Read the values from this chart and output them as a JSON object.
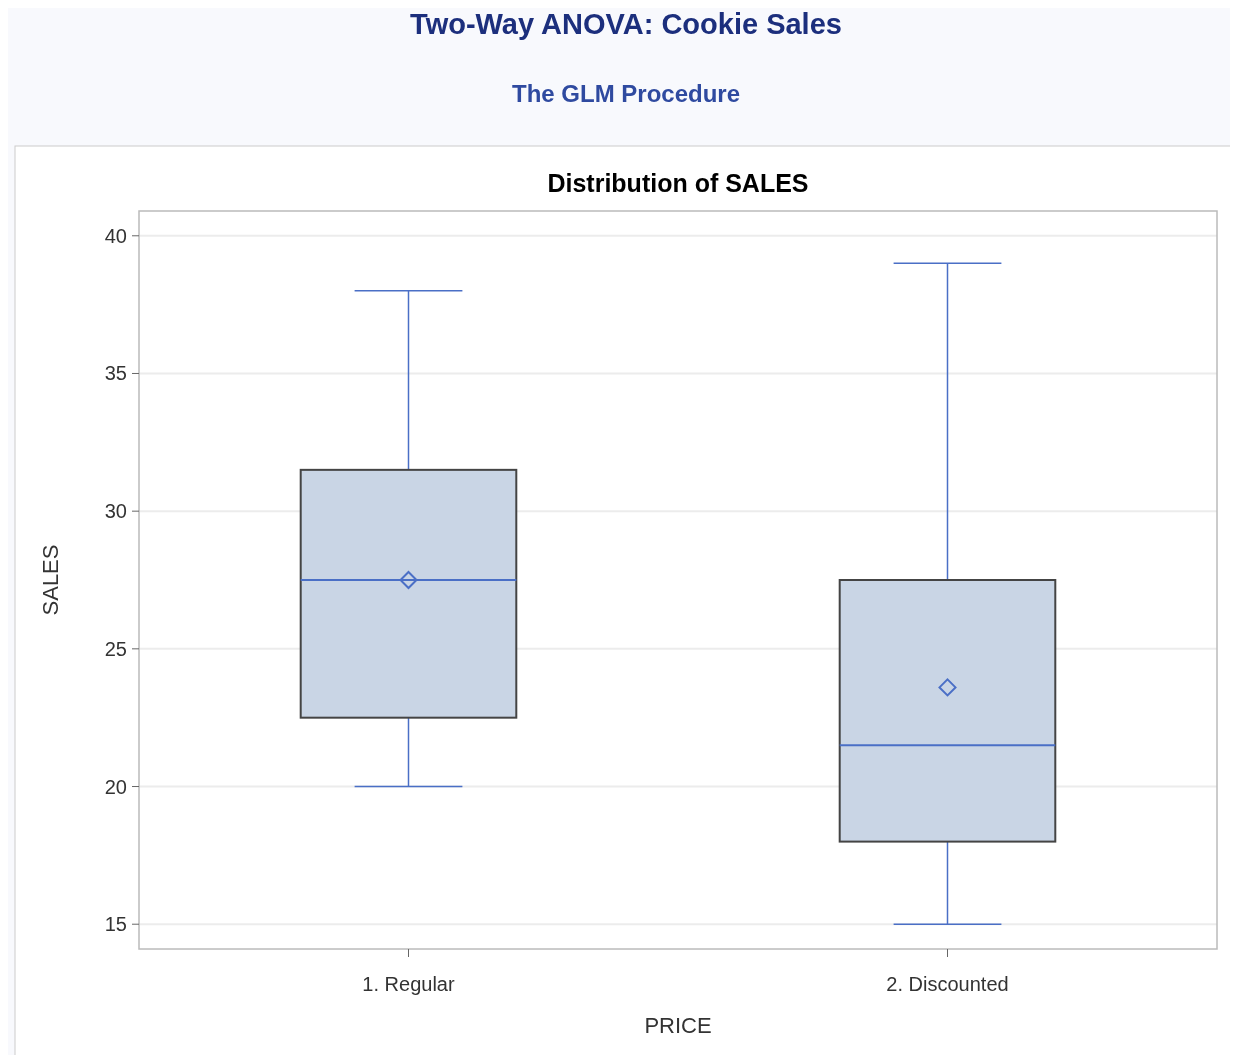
{
  "chart_data": {
    "type": "box",
    "title": "Two-Way ANOVA: Cookie Sales",
    "subtitle": "The GLM Procedure",
    "annotations": [
      "Distribution of SALES"
    ],
    "xlabel": "PRICE",
    "ylabel": "SALES",
    "categories": [
      "1. Regular",
      "2. Discounted"
    ],
    "boxes": [
      {
        "low": 20,
        "q1": 22.5,
        "median": 27.5,
        "q3": 31.5,
        "high": 38,
        "mean": 27.5
      },
      {
        "low": 15,
        "q1": 18,
        "median": 21.5,
        "q3": 27.5,
        "high": 39,
        "mean": 23.6
      }
    ],
    "color": "#c9d5e5",
    "ylim": [
      14.1,
      40.9
    ],
    "yticks": [
      15,
      20,
      25,
      30,
      35,
      40
    ],
    "grid": "y",
    "marker": "diamond"
  }
}
